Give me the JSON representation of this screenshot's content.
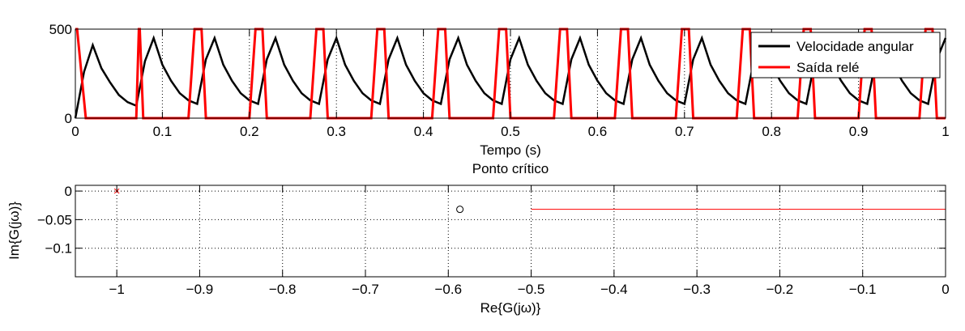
{
  "chart_data": [
    {
      "type": "line",
      "title": "",
      "xlabel": "Tempo (s)",
      "ylabel": "",
      "xlim": [
        0,
        1
      ],
      "ylim": [
        0,
        500
      ],
      "xticks": [
        0,
        0.1,
        0.2,
        0.3,
        0.4,
        0.5,
        0.6,
        0.7,
        0.8,
        0.9,
        1
      ],
      "xtick_labels": [
        "0",
        "0.1",
        "0.2",
        "0.3",
        "0.4",
        "0.5",
        "0.6",
        "0.7",
        "0.8",
        "0.9",
        "1"
      ],
      "yticks": [
        0,
        500
      ],
      "ytick_labels": [
        "0",
        "500"
      ],
      "grid": true,
      "legend_position": "top-right",
      "series": [
        {
          "name": "Velocidade angular",
          "color": "#000000",
          "x": [
            0,
            0.01,
            0.02,
            0.03,
            0.04,
            0.05,
            0.06,
            0.07,
            0.08,
            0.09,
            0.1,
            0.11,
            0.12,
            0.13,
            0.14,
            0.15,
            0.16,
            0.17,
            0.18,
            0.19,
            0.2,
            0.21,
            0.22,
            0.23,
            0.24,
            0.25,
            0.26,
            0.27,
            0.28,
            0.29,
            0.3,
            0.31,
            0.32,
            0.33,
            0.34,
            0.35,
            0.36,
            0.37,
            0.38,
            0.39,
            0.4,
            0.41,
            0.42,
            0.43,
            0.44,
            0.45,
            0.46,
            0.47,
            0.48,
            0.49,
            0.5,
            0.51,
            0.52,
            0.53,
            0.54,
            0.55,
            0.56,
            0.57,
            0.58,
            0.59,
            0.6,
            0.61,
            0.62,
            0.63,
            0.64,
            0.65,
            0.66,
            0.67,
            0.68,
            0.69,
            0.7,
            0.71,
            0.72,
            0.73,
            0.74,
            0.75,
            0.76,
            0.77,
            0.78,
            0.79,
            0.8,
            0.81,
            0.82,
            0.83,
            0.84,
            0.85,
            0.86,
            0.87,
            0.88,
            0.89,
            0.9,
            0.91,
            0.92,
            0.93,
            0.94,
            0.95,
            0.96,
            0.97,
            0.98,
            0.99,
            1.0
          ],
          "y": [
            0,
            260,
            410,
            280,
            200,
            130,
            90,
            70,
            320,
            450,
            300,
            210,
            140,
            100,
            80,
            330,
            450,
            300,
            210,
            140,
            100,
            80,
            330,
            450,
            300,
            210,
            140,
            100,
            80,
            330,
            450,
            300,
            210,
            140,
            100,
            80,
            330,
            450,
            300,
            210,
            140,
            100,
            80,
            330,
            450,
            300,
            210,
            140,
            100,
            80,
            330,
            450,
            300,
            210,
            140,
            100,
            80,
            330,
            450,
            300,
            210,
            140,
            100,
            80,
            330,
            450,
            300,
            210,
            140,
            100,
            80,
            330,
            450,
            300,
            210,
            140,
            100,
            80,
            330,
            450,
            300,
            210,
            140,
            100,
            80,
            330,
            450,
            300,
            210,
            140,
            100,
            80,
            330,
            450,
            300,
            210,
            140,
            100,
            80,
            330,
            450
          ]
        },
        {
          "name": "Saída relé",
          "color": "#ff0000",
          "x": [
            0,
            0.002,
            0.012,
            0.07,
            0.07,
            0.073,
            0.074,
            0.078,
            0.13,
            0.137,
            0.143,
            0.145,
            0.15,
            0.2,
            0.207,
            0.213,
            0.215,
            0.22,
            0.27,
            0.277,
            0.283,
            0.285,
            0.29,
            0.34,
            0.347,
            0.353,
            0.355,
            0.36,
            0.41,
            0.417,
            0.423,
            0.425,
            0.43,
            0.48,
            0.487,
            0.493,
            0.495,
            0.5,
            0.55,
            0.557,
            0.563,
            0.565,
            0.57,
            0.62,
            0.627,
            0.633,
            0.635,
            0.64,
            0.69,
            0.697,
            0.703,
            0.705,
            0.71,
            0.76,
            0.767,
            0.773,
            0.775,
            0.78,
            0.83,
            0.837,
            0.843,
            0.845,
            0.85,
            0.9,
            0.907,
            0.913,
            0.915,
            0.92,
            0.97,
            0.977,
            0.983,
            0.985,
            0.99,
            1
          ],
          "y": [
            500,
            500,
            0,
            0,
            0,
            500,
            500,
            0,
            0,
            500,
            500,
            500,
            0,
            0,
            500,
            500,
            500,
            0,
            0,
            500,
            500,
            500,
            0,
            0,
            500,
            500,
            500,
            0,
            0,
            500,
            500,
            500,
            0,
            0,
            500,
            500,
            500,
            0,
            0,
            500,
            500,
            500,
            0,
            0,
            500,
            500,
            500,
            0,
            0,
            500,
            500,
            500,
            0,
            0,
            500,
            500,
            500,
            0,
            0,
            500,
            500,
            500,
            0,
            0,
            500,
            500,
            500,
            0,
            0,
            500,
            500,
            500,
            0,
            0
          ]
        }
      ]
    },
    {
      "type": "scatter",
      "title": "Ponto crítico",
      "xlabel": "Re{G(jω)}",
      "ylabel": "Im{G(jω)}",
      "xlim": [
        -1.05,
        0
      ],
      "ylim": [
        -0.15,
        0.01
      ],
      "xticks": [
        -1,
        -0.9,
        -0.8,
        -0.7,
        -0.6,
        -0.5,
        -0.4,
        -0.3,
        -0.2,
        -0.1,
        0
      ],
      "xtick_labels": [
        "−1",
        "−0.9",
        "−0.8",
        "−0.7",
        "−0.6",
        "−0.5",
        "−0.4",
        "−0.3",
        "−0.2",
        "−0.1",
        "0"
      ],
      "yticks": [
        0,
        -0.05,
        -0.1
      ],
      "ytick_labels": [
        "0",
        "−0.05",
        "−0.1"
      ],
      "grid": true,
      "series": [
        {
          "marker": "x",
          "color": "#ff0000",
          "x": [
            -1
          ],
          "y": [
            0
          ]
        },
        {
          "marker": "o",
          "color": "#000000",
          "x": [
            -0.586
          ],
          "y": [
            -0.032
          ]
        },
        {
          "marker": "line",
          "color": "#ff0000",
          "x": [
            -0.5,
            0
          ],
          "y": [
            -0.032,
            -0.032
          ]
        }
      ]
    }
  ]
}
